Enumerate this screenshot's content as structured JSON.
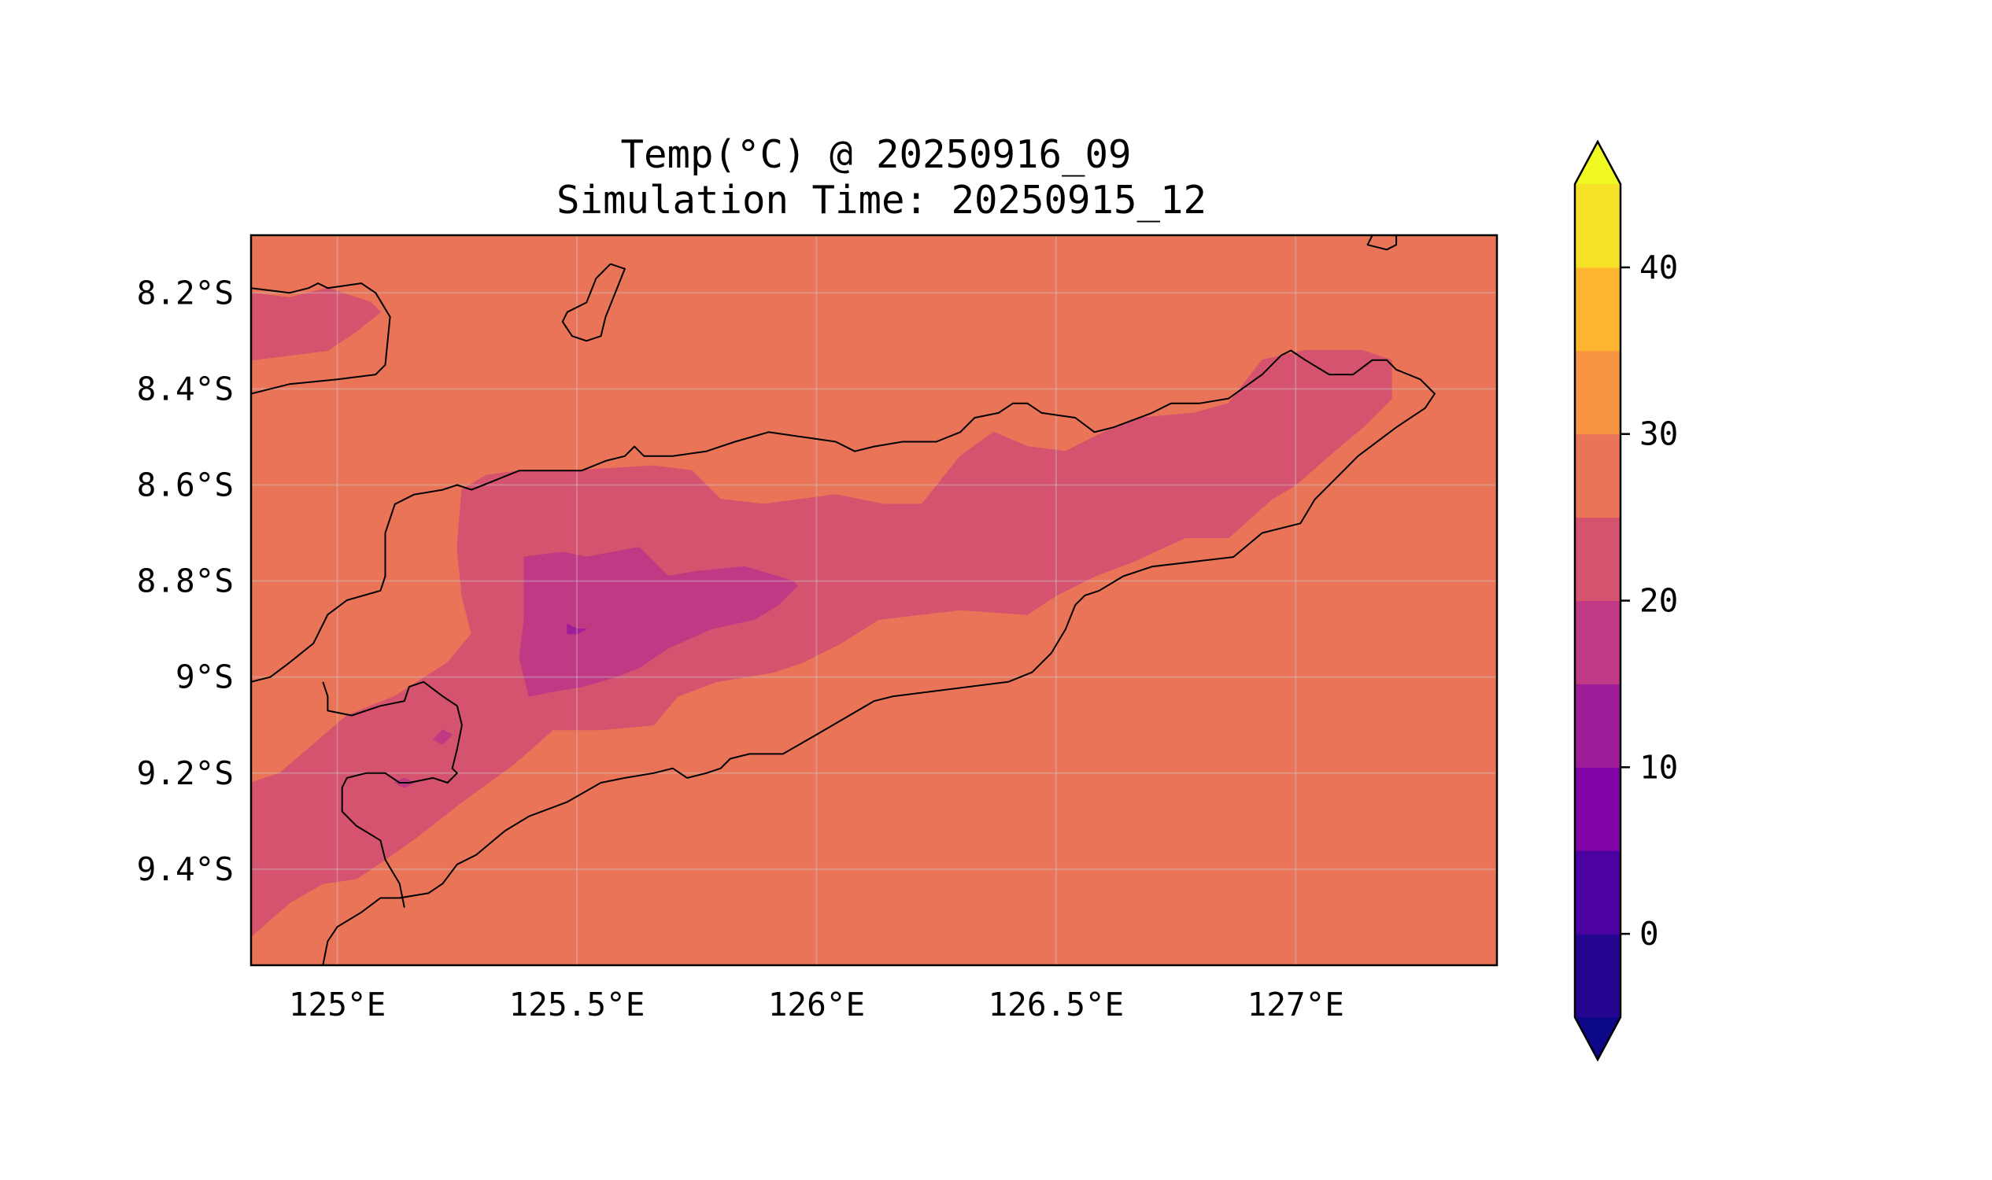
{
  "title": {
    "line1": "Temp(°C) @ 20250916_09",
    "line2": "Simulation Time: 20250915_12"
  },
  "map": {
    "lon_range": [
      124.82,
      127.42
    ],
    "lat_range": [
      -9.6,
      -8.08
    ],
    "background_level_color": "#e97458",
    "x_ticks": [
      {
        "value": 125.0,
        "label": "125°E"
      },
      {
        "value": 125.5,
        "label": "125.5°E"
      },
      {
        "value": 126.0,
        "label": "126°E"
      },
      {
        "value": 126.5,
        "label": "126.5°E"
      },
      {
        "value": 127.0,
        "label": "127°E"
      }
    ],
    "y_ticks": [
      {
        "value": -8.2,
        "label": "8.2°S"
      },
      {
        "value": -8.4,
        "label": "8.4°S"
      },
      {
        "value": -8.6,
        "label": "8.6°S"
      },
      {
        "value": -8.8,
        "label": "8.8°S"
      },
      {
        "value": -9.0,
        "label": "9°S"
      },
      {
        "value": -9.2,
        "label": "9.2°S"
      },
      {
        "value": -9.4,
        "label": "9.4°S"
      }
    ],
    "gridlines": true,
    "coastlines": true
  },
  "colorbar": {
    "levels": [
      {
        "min": -5,
        "max": 0,
        "color": "#260591"
      },
      {
        "min": 0,
        "max": 5,
        "color": "#4c02a1"
      },
      {
        "min": 5,
        "max": 10,
        "color": "#8104a7"
      },
      {
        "min": 10,
        "max": 15,
        "color": "#a01d9a"
      },
      {
        "min": 15,
        "max": 20,
        "color": "#bf3984"
      },
      {
        "min": 20,
        "max": 25,
        "color": "#d5536f"
      },
      {
        "min": 25,
        "max": 30,
        "color": "#e97458"
      },
      {
        "min": 30,
        "max": 35,
        "color": "#f89441"
      },
      {
        "min": 35,
        "max": 40,
        "color": "#fdb42f"
      },
      {
        "min": 40,
        "max": 45,
        "color": "#f5e126"
      }
    ],
    "extend_min_color": "#0d0887",
    "extend_max_color": "#f0f921",
    "ticks": [
      {
        "value": 0,
        "label": "0"
      },
      {
        "value": 10,
        "label": "10"
      },
      {
        "value": 20,
        "label": "20"
      },
      {
        "value": 30,
        "label": "30"
      },
      {
        "value": 40,
        "label": "40"
      }
    ]
  },
  "chart_data": {
    "type": "heatmap",
    "title": "Temp(°C) @ 20250916_09\nSimulation Time: 20250915_12",
    "xlabel": "",
    "ylabel": "",
    "xlim": [
      124.82,
      127.42
    ],
    "ylim": [
      -9.6,
      -8.08
    ],
    "colorbar_range": [
      -5,
      45
    ],
    "regions": [
      {
        "level": "25-30",
        "color": "#e97458",
        "coords": [
          [
            124.82,
            -8.08
          ],
          [
            127.42,
            -8.08
          ],
          [
            127.42,
            -9.6
          ],
          [
            124.82,
            -9.6
          ]
        ]
      },
      {
        "level": "20-25",
        "color": "#d5536f",
        "coords": [
          [
            124.82,
            -8.2
          ],
          [
            124.9,
            -8.21
          ],
          [
            124.98,
            -8.19
          ],
          [
            125.07,
            -8.22
          ],
          [
            125.09,
            -8.24
          ],
          [
            125.04,
            -8.28
          ],
          [
            124.98,
            -8.32
          ],
          [
            124.9,
            -8.33
          ],
          [
            124.82,
            -8.34
          ]
        ]
      },
      {
        "level": "20-25",
        "color": "#d5536f",
        "coords": [
          [
            125.26,
            -8.61
          ],
          [
            125.31,
            -8.58
          ],
          [
            125.38,
            -8.57
          ],
          [
            125.49,
            -8.57
          ],
          [
            125.66,
            -8.56
          ],
          [
            125.74,
            -8.57
          ],
          [
            125.8,
            -8.63
          ],
          [
            125.89,
            -8.64
          ],
          [
            126.04,
            -8.62
          ],
          [
            126.14,
            -8.64
          ],
          [
            126.22,
            -8.64
          ],
          [
            126.3,
            -8.54
          ],
          [
            126.37,
            -8.49
          ],
          [
            126.44,
            -8.52
          ],
          [
            126.52,
            -8.53
          ],
          [
            126.6,
            -8.49
          ],
          [
            126.68,
            -8.46
          ],
          [
            126.79,
            -8.45
          ],
          [
            126.86,
            -8.43
          ],
          [
            126.93,
            -8.34
          ],
          [
            127.02,
            -8.32
          ],
          [
            127.14,
            -8.32
          ],
          [
            127.2,
            -8.34
          ],
          [
            127.2,
            -8.42
          ],
          [
            127.14,
            -8.48
          ],
          [
            127.08,
            -8.53
          ],
          [
            127.0,
            -8.6
          ],
          [
            126.95,
            -8.63
          ],
          [
            126.86,
            -8.71
          ],
          [
            126.77,
            -8.71
          ],
          [
            126.66,
            -8.76
          ],
          [
            126.58,
            -8.79
          ],
          [
            126.5,
            -8.83
          ],
          [
            126.44,
            -8.87
          ],
          [
            126.3,
            -8.86
          ],
          [
            126.13,
            -8.88
          ],
          [
            126.05,
            -8.93
          ],
          [
            125.97,
            -8.97
          ],
          [
            125.91,
            -8.99
          ],
          [
            125.79,
            -9.01
          ],
          [
            125.71,
            -9.04
          ],
          [
            125.66,
            -9.1
          ],
          [
            125.55,
            -9.11
          ],
          [
            125.45,
            -9.11
          ],
          [
            125.37,
            -9.18
          ],
          [
            125.26,
            -9.26
          ],
          [
            125.17,
            -9.33
          ],
          [
            125.1,
            -9.38
          ],
          [
            125.04,
            -9.42
          ],
          [
            124.97,
            -9.43
          ],
          [
            124.9,
            -9.47
          ],
          [
            124.82,
            -9.54
          ],
          [
            124.82,
            -9.22
          ],
          [
            124.88,
            -9.2
          ],
          [
            124.95,
            -9.14
          ],
          [
            125.02,
            -9.08
          ],
          [
            125.12,
            -9.04
          ],
          [
            125.23,
            -8.97
          ],
          [
            125.28,
            -8.91
          ],
          [
            125.26,
            -8.83
          ],
          [
            125.25,
            -8.73
          ]
        ]
      },
      {
        "level": "15-20",
        "color": "#bf3984",
        "coords": [
          [
            125.39,
            -8.75
          ],
          [
            125.47,
            -8.74
          ],
          [
            125.52,
            -8.75
          ],
          [
            125.63,
            -8.73
          ],
          [
            125.69,
            -8.79
          ],
          [
            125.75,
            -8.78
          ],
          [
            125.85,
            -8.77
          ],
          [
            125.95,
            -8.8
          ],
          [
            125.96,
            -8.81
          ],
          [
            125.92,
            -8.85
          ],
          [
            125.87,
            -8.88
          ],
          [
            125.78,
            -8.9
          ],
          [
            125.69,
            -8.94
          ],
          [
            125.63,
            -8.98
          ],
          [
            125.58,
            -9.0
          ],
          [
            125.51,
            -9.02
          ],
          [
            125.45,
            -9.03
          ],
          [
            125.4,
            -9.04
          ],
          [
            125.38,
            -8.96
          ],
          [
            125.39,
            -8.88
          ],
          [
            125.39,
            -8.8
          ]
        ]
      },
      {
        "level": "10-15",
        "color": "#a01d9a",
        "coords": [
          [
            125.48,
            -8.89
          ],
          [
            125.5,
            -8.9
          ],
          [
            125.52,
            -8.9
          ],
          [
            125.5,
            -8.91
          ],
          [
            125.48,
            -8.91
          ]
        ]
      },
      {
        "level": "15-20",
        "color": "#bf3984",
        "coords": [
          [
            125.2,
            -9.13
          ],
          [
            125.22,
            -9.11
          ],
          [
            125.24,
            -9.12
          ],
          [
            125.22,
            -9.14
          ]
        ]
      },
      {
        "level": "15-20",
        "color": "#bf3984",
        "coords": [
          [
            125.12,
            -9.22
          ],
          [
            125.14,
            -9.21
          ],
          [
            125.16,
            -9.22
          ],
          [
            125.14,
            -9.23
          ]
        ]
      }
    ],
    "coastlines": [
      [
        [
          124.82,
          -8.19
        ],
        [
          124.9,
          -8.2
        ],
        [
          124.94,
          -8.19
        ],
        [
          124.96,
          -8.18
        ],
        [
          124.98,
          -8.19
        ],
        [
          125.05,
          -8.18
        ],
        [
          125.08,
          -8.2
        ],
        [
          125.11,
          -8.25
        ],
        [
          125.1,
          -8.35
        ],
        [
          125.08,
          -8.37
        ],
        [
          125.0,
          -8.38
        ],
        [
          124.9,
          -8.39
        ],
        [
          124.82,
          -8.41
        ]
      ],
      [
        [
          125.57,
          -8.14
        ],
        [
          125.6,
          -8.15
        ],
        [
          125.58,
          -8.2
        ],
        [
          125.56,
          -8.25
        ],
        [
          125.55,
          -8.29
        ],
        [
          125.52,
          -8.3
        ],
        [
          125.49,
          -8.29
        ],
        [
          125.47,
          -8.26
        ],
        [
          125.48,
          -8.24
        ],
        [
          125.52,
          -8.22
        ],
        [
          125.54,
          -8.17
        ],
        [
          125.57,
          -8.14
        ]
      ],
      [
        [
          127.16,
          -8.08
        ],
        [
          127.21,
          -8.08
        ],
        [
          127.21,
          -8.1
        ],
        [
          127.19,
          -8.11
        ],
        [
          127.15,
          -8.1
        ],
        [
          127.16,
          -8.08
        ]
      ],
      [
        [
          124.82,
          -9.01
        ],
        [
          124.86,
          -9.0
        ],
        [
          124.9,
          -8.97
        ],
        [
          124.95,
          -8.93
        ],
        [
          124.98,
          -8.87
        ],
        [
          125.02,
          -8.84
        ],
        [
          125.09,
          -8.82
        ],
        [
          125.1,
          -8.79
        ],
        [
          125.1,
          -8.7
        ],
        [
          125.12,
          -8.64
        ],
        [
          125.16,
          -8.62
        ],
        [
          125.22,
          -8.61
        ],
        [
          125.25,
          -8.6
        ],
        [
          125.28,
          -8.61
        ],
        [
          125.33,
          -8.59
        ],
        [
          125.38,
          -8.57
        ],
        [
          125.44,
          -8.57
        ],
        [
          125.51,
          -8.57
        ],
        [
          125.56,
          -8.55
        ],
        [
          125.6,
          -8.54
        ],
        [
          125.62,
          -8.52
        ],
        [
          125.64,
          -8.54
        ],
        [
          125.7,
          -8.54
        ],
        [
          125.77,
          -8.53
        ],
        [
          125.83,
          -8.51
        ],
        [
          125.9,
          -8.49
        ],
        [
          125.97,
          -8.5
        ],
        [
          126.04,
          -8.51
        ],
        [
          126.08,
          -8.53
        ],
        [
          126.12,
          -8.52
        ],
        [
          126.18,
          -8.51
        ],
        [
          126.25,
          -8.51
        ],
        [
          126.3,
          -8.49
        ],
        [
          126.33,
          -8.46
        ],
        [
          126.38,
          -8.45
        ],
        [
          126.41,
          -8.43
        ],
        [
          126.44,
          -8.43
        ],
        [
          126.47,
          -8.45
        ],
        [
          126.54,
          -8.46
        ],
        [
          126.58,
          -8.49
        ],
        [
          126.62,
          -8.48
        ],
        [
          126.7,
          -8.45
        ],
        [
          126.74,
          -8.43
        ],
        [
          126.8,
          -8.43
        ],
        [
          126.86,
          -8.42
        ],
        [
          126.93,
          -8.37
        ],
        [
          126.97,
          -8.33
        ],
        [
          126.99,
          -8.32
        ],
        [
          127.02,
          -8.34
        ],
        [
          127.07,
          -8.37
        ],
        [
          127.12,
          -8.37
        ],
        [
          127.16,
          -8.34
        ],
        [
          127.19,
          -8.34
        ],
        [
          127.21,
          -8.36
        ],
        [
          127.26,
          -8.38
        ],
        [
          127.29,
          -8.41
        ],
        [
          127.27,
          -8.44
        ],
        [
          127.21,
          -8.48
        ],
        [
          127.13,
          -8.54
        ],
        [
          127.09,
          -8.58
        ],
        [
          127.04,
          -8.63
        ],
        [
          127.01,
          -8.68
        ],
        [
          126.93,
          -8.7
        ],
        [
          126.87,
          -8.75
        ],
        [
          126.7,
          -8.77
        ],
        [
          126.64,
          -8.79
        ],
        [
          126.59,
          -8.82
        ],
        [
          126.56,
          -8.83
        ],
        [
          126.54,
          -8.85
        ],
        [
          126.52,
          -8.9
        ],
        [
          126.49,
          -8.95
        ],
        [
          126.45,
          -8.99
        ],
        [
          126.4,
          -9.01
        ],
        [
          126.16,
          -9.04
        ],
        [
          126.12,
          -9.05
        ],
        [
          126.0,
          -9.12
        ],
        [
          125.93,
          -9.16
        ],
        [
          125.86,
          -9.16
        ],
        [
          125.82,
          -9.17
        ],
        [
          125.8,
          -9.19
        ],
        [
          125.77,
          -9.2
        ],
        [
          125.73,
          -9.21
        ],
        [
          125.7,
          -9.19
        ],
        [
          125.66,
          -9.2
        ],
        [
          125.6,
          -9.21
        ],
        [
          125.55,
          -9.22
        ],
        [
          125.48,
          -9.26
        ],
        [
          125.4,
          -9.29
        ],
        [
          125.35,
          -9.32
        ],
        [
          125.29,
          -9.37
        ],
        [
          125.25,
          -9.39
        ],
        [
          125.22,
          -9.43
        ],
        [
          125.19,
          -9.45
        ],
        [
          125.13,
          -9.46
        ],
        [
          125.09,
          -9.46
        ],
        [
          125.05,
          -9.49
        ],
        [
          125.0,
          -9.52
        ],
        [
          124.98,
          -9.55
        ],
        [
          124.97,
          -9.6
        ]
      ],
      [
        [
          124.97,
          -9.01
        ],
        [
          124.98,
          -9.04
        ],
        [
          124.98,
          -9.07
        ],
        [
          125.03,
          -9.08
        ],
        [
          125.09,
          -9.06
        ],
        [
          125.14,
          -9.05
        ],
        [
          125.15,
          -9.02
        ],
        [
          125.18,
          -9.01
        ],
        [
          125.22,
          -9.04
        ],
        [
          125.25,
          -9.06
        ],
        [
          125.26,
          -9.1
        ],
        [
          125.25,
          -9.15
        ],
        [
          125.24,
          -9.19
        ],
        [
          125.25,
          -9.2
        ],
        [
          125.23,
          -9.22
        ],
        [
          125.2,
          -9.21
        ],
        [
          125.15,
          -9.22
        ],
        [
          125.13,
          -9.22
        ],
        [
          125.1,
          -9.2
        ],
        [
          125.06,
          -9.2
        ],
        [
          125.02,
          -9.21
        ],
        [
          125.01,
          -9.23
        ],
        [
          125.01,
          -9.28
        ],
        [
          125.04,
          -9.31
        ],
        [
          125.09,
          -9.34
        ],
        [
          125.1,
          -9.38
        ],
        [
          125.13,
          -9.43
        ],
        [
          125.14,
          -9.48
        ]
      ]
    ]
  }
}
